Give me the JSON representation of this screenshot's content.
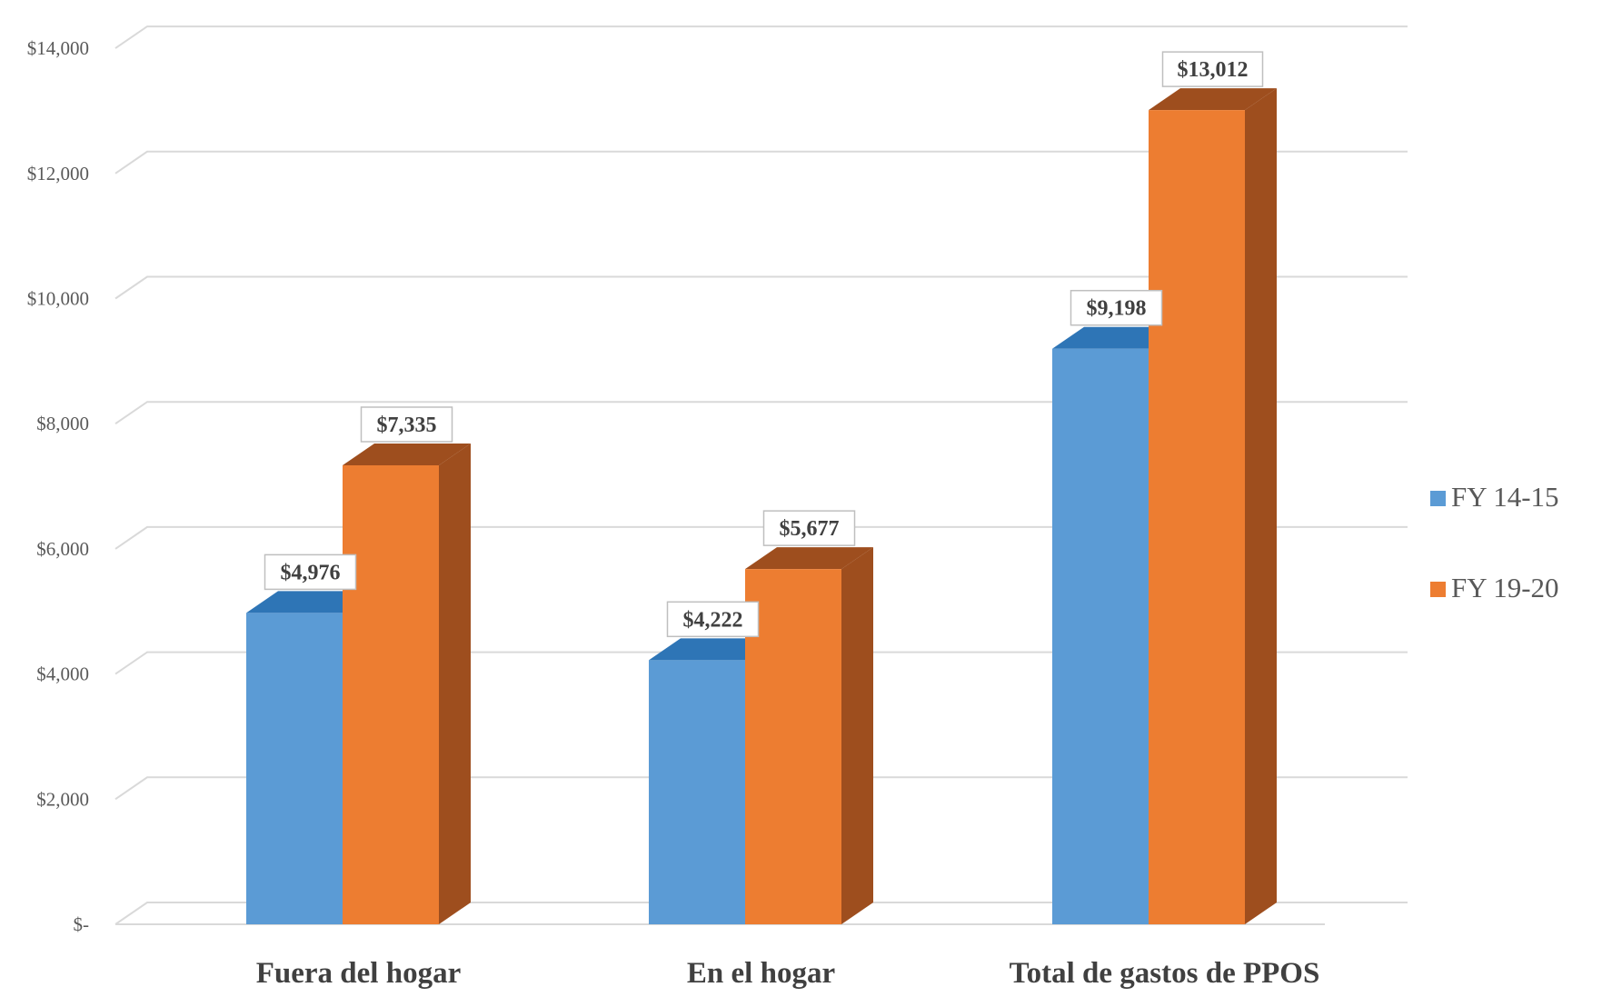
{
  "chart_data": {
    "type": "bar",
    "title": "",
    "xlabel": "",
    "ylabel": "",
    "categories": [
      "Fuera del hogar",
      "En el hogar",
      "Total de gastos de PPOS"
    ],
    "series": [
      {
        "name": "FY 14-15",
        "values": [
          4976,
          4222,
          9198
        ],
        "labels": [
          "$4,976",
          "$4,222",
          "$9,198"
        ],
        "color": "#5B9BD5",
        "side_color": "#2E75B6"
      },
      {
        "name": "FY 19-20",
        "values": [
          7335,
          5677,
          13012
        ],
        "labels": [
          "$7,335",
          "$5,677",
          "$13,012"
        ],
        "color": "#ED7D31",
        "side_color": "#9E4E1E"
      }
    ],
    "ylim": [
      0,
      14000
    ],
    "yticks": [
      0,
      2000,
      4000,
      6000,
      8000,
      10000,
      12000,
      14000
    ],
    "ytick_labels": [
      "$-",
      "$2,000",
      "$4,000",
      "$6,000",
      "$8,000",
      "$10,000",
      "$12,000",
      "$14,000"
    ],
    "grid": true,
    "style": "3d-clustered-column",
    "legend_position": "right"
  }
}
